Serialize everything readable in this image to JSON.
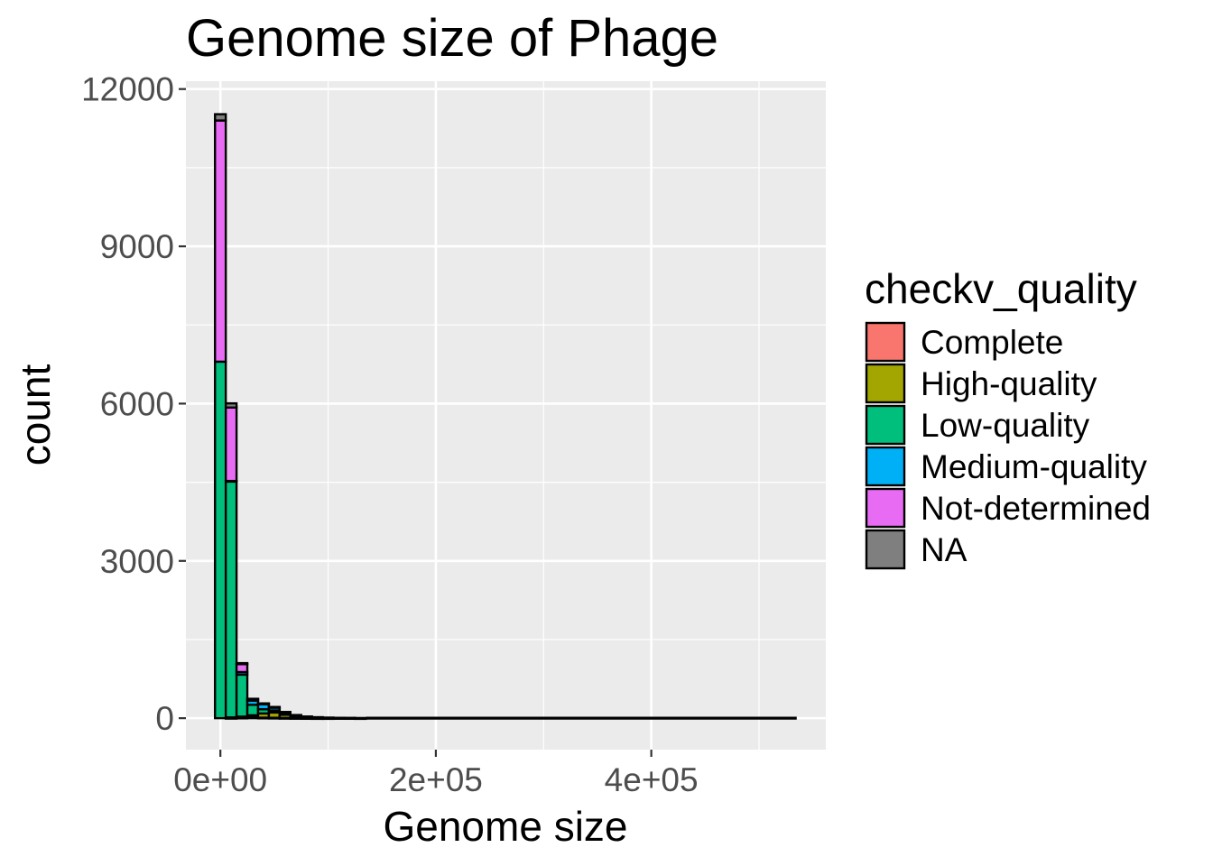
{
  "chart_data": {
    "type": "histogram",
    "title": "Genome size of Phage",
    "xlabel": "Genome size",
    "ylabel": "count",
    "xlim": [
      -32000,
      562000
    ],
    "ylim": [
      -600,
      12150
    ],
    "x_ticks": [
      0,
      200000,
      400000
    ],
    "x_tick_labels": [
      "0e+00",
      "2e+05",
      "4e+05"
    ],
    "x_minor_ticks": [
      100000,
      300000,
      500000
    ],
    "y_ticks": [
      0,
      3000,
      6000,
      9000,
      12000
    ],
    "y_tick_labels": [
      "0",
      "3000",
      "6000",
      "9000",
      "12000"
    ],
    "y_minor_ticks": [
      1500,
      4500,
      7500,
      10500
    ],
    "bin_width": 10000,
    "bin_starts": [
      -5000,
      5000,
      15000,
      25000,
      35000,
      45000,
      55000,
      65000,
      75000,
      85000,
      95000,
      105000,
      115000,
      125000,
      135000
    ],
    "tail_x_range": [
      135000,
      535000
    ],
    "legend_title": "checkv_quality",
    "legend_position": "right",
    "grid": true,
    "series": [
      {
        "name": "Complete",
        "color": "#F8766D",
        "values": [
          0,
          5,
          10,
          15,
          10,
          8,
          5,
          3,
          2,
          1,
          1,
          0,
          0,
          0,
          0
        ]
      },
      {
        "name": "High-quality",
        "color": "#A3A500",
        "values": [
          0,
          10,
          20,
          40,
          80,
          100,
          60,
          30,
          15,
          8,
          5,
          3,
          2,
          1,
          0
        ]
      },
      {
        "name": "Low-quality",
        "color": "#00BF7D",
        "values": [
          6800,
          4500,
          800,
          200,
          80,
          40,
          20,
          10,
          5,
          3,
          2,
          1,
          1,
          0,
          0
        ]
      },
      {
        "name": "Medium-quality",
        "color": "#00B0F6",
        "values": [
          0,
          10,
          50,
          80,
          100,
          60,
          30,
          15,
          8,
          5,
          3,
          2,
          1,
          1,
          0
        ]
      },
      {
        "name": "Not-determined",
        "color": "#E76BF3",
        "values": [
          4600,
          1400,
          150,
          30,
          10,
          5,
          3,
          2,
          1,
          1,
          0,
          0,
          0,
          0,
          0
        ]
      },
      {
        "name": "NA",
        "color": "#7F7F7F",
        "values": [
          120,
          80,
          20,
          5,
          2,
          1,
          0,
          0,
          0,
          0,
          0,
          0,
          0,
          0,
          0
        ]
      }
    ]
  }
}
